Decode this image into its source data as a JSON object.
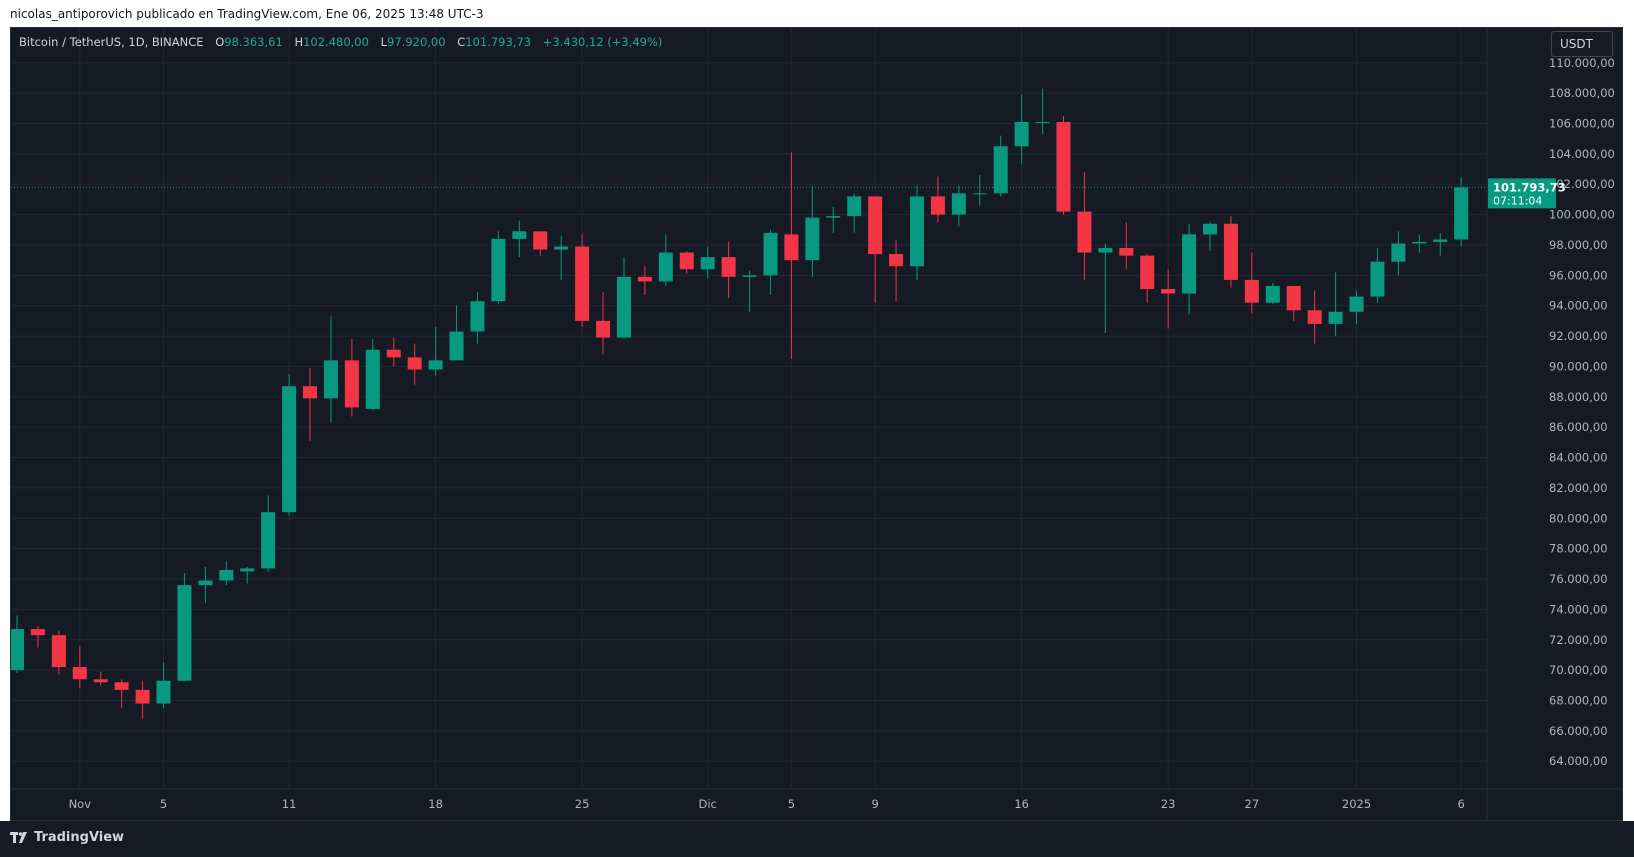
{
  "header": {
    "byline": "nicolas_antiporovich publicado en TradingView.com, Ene 06, 2025 13:48 UTC-3"
  },
  "legend": {
    "symbol": "Bitcoin / TetherUS, 1D, BINANCE",
    "open_label": "O",
    "open": "98.363,61",
    "high_label": "H",
    "high": "102.480,00",
    "low_label": "L",
    "low": "97.920,00",
    "close_label": "C",
    "close": "101.793,73",
    "change": "+3.430,12 (+3,49%)"
  },
  "currency_button": "USDT",
  "price_tag": {
    "price": "101.793,73",
    "countdown": "07:11:04"
  },
  "footer": {
    "brand": "TradingView"
  },
  "colors": {
    "background": "#161a25",
    "up": "#089981",
    "down": "#f23645",
    "grid": "#232733",
    "text": "#b2b5be"
  },
  "chart_data": {
    "type": "candlestick",
    "title": "Bitcoin / TetherUS, 1D, BINANCE",
    "ylim": [
      62500,
      111500
    ],
    "y_ticks": [
      64000,
      66000,
      68000,
      70000,
      72000,
      74000,
      76000,
      78000,
      80000,
      82000,
      84000,
      86000,
      88000,
      90000,
      92000,
      94000,
      96000,
      98000,
      100000,
      102000,
      104000,
      106000,
      108000,
      110000
    ],
    "y_tick_labels": [
      "64.000,00",
      "66.000,00",
      "68.000,00",
      "70.000,00",
      "72.000,00",
      "74.000,00",
      "76.000,00",
      "78.000,00",
      "80.000,00",
      "82.000,00",
      "84.000,00",
      "86.000,00",
      "88.000,00",
      "90.000,00",
      "92.000,00",
      "94.000,00",
      "96.000,00",
      "98.000,00",
      "100.000,00",
      "102.000,00",
      "104.000,00",
      "106.000,00",
      "108.000,00",
      "110.000,00"
    ],
    "x_labels": [
      {
        "text": "Nov",
        "index": 3
      },
      {
        "text": "5",
        "index": 7
      },
      {
        "text": "11",
        "index": 13
      },
      {
        "text": "18",
        "index": 20
      },
      {
        "text": "25",
        "index": 27
      },
      {
        "text": "Dic",
        "index": 33
      },
      {
        "text": "5",
        "index": 37
      },
      {
        "text": "9",
        "index": 41
      },
      {
        "text": "16",
        "index": 48
      },
      {
        "text": "23",
        "index": 55
      },
      {
        "text": "27",
        "index": 59
      },
      {
        "text": "2025",
        "index": 64
      },
      {
        "text": "6",
        "index": 69
      }
    ],
    "candles": [
      {
        "date": "2024-10-29",
        "o": 70000,
        "h": 73600,
        "l": 69800,
        "c": 72700
      },
      {
        "date": "2024-10-30",
        "o": 72700,
        "h": 72900,
        "l": 71500,
        "c": 72300
      },
      {
        "date": "2024-10-31",
        "o": 72300,
        "h": 72600,
        "l": 69700,
        "c": 70200
      },
      {
        "date": "2024-11-01",
        "o": 70200,
        "h": 71600,
        "l": 68800,
        "c": 69400
      },
      {
        "date": "2024-11-02",
        "o": 69400,
        "h": 69900,
        "l": 69000,
        "c": 69200
      },
      {
        "date": "2024-11-03",
        "o": 69200,
        "h": 69400,
        "l": 67500,
        "c": 68700
      },
      {
        "date": "2024-11-04",
        "o": 68700,
        "h": 69300,
        "l": 66800,
        "c": 67800
      },
      {
        "date": "2024-11-05",
        "o": 67800,
        "h": 70500,
        "l": 67500,
        "c": 69300
      },
      {
        "date": "2024-11-06",
        "o": 69300,
        "h": 76400,
        "l": 69300,
        "c": 75600
      },
      {
        "date": "2024-11-07",
        "o": 75600,
        "h": 76800,
        "l": 74400,
        "c": 75900
      },
      {
        "date": "2024-11-08",
        "o": 75900,
        "h": 77200,
        "l": 75600,
        "c": 76600
      },
      {
        "date": "2024-11-09",
        "o": 76500,
        "h": 76800,
        "l": 75700,
        "c": 76700
      },
      {
        "date": "2024-11-10",
        "o": 76700,
        "h": 81500,
        "l": 76500,
        "c": 80400
      },
      {
        "date": "2024-11-11",
        "o": 80400,
        "h": 89500,
        "l": 80200,
        "c": 88700
      },
      {
        "date": "2024-11-12",
        "o": 88700,
        "h": 89900,
        "l": 85100,
        "c": 87900
      },
      {
        "date": "2024-11-13",
        "o": 87900,
        "h": 93300,
        "l": 86300,
        "c": 90400
      },
      {
        "date": "2024-11-14",
        "o": 90400,
        "h": 91800,
        "l": 86700,
        "c": 87300
      },
      {
        "date": "2024-11-15",
        "o": 87200,
        "h": 91800,
        "l": 87100,
        "c": 91100
      },
      {
        "date": "2024-11-16",
        "o": 91100,
        "h": 91900,
        "l": 90000,
        "c": 90600
      },
      {
        "date": "2024-11-17",
        "o": 90600,
        "h": 91500,
        "l": 88800,
        "c": 89800
      },
      {
        "date": "2024-11-18",
        "o": 89800,
        "h": 92600,
        "l": 89400,
        "c": 90400
      },
      {
        "date": "2024-11-19",
        "o": 90400,
        "h": 94000,
        "l": 90400,
        "c": 92300
      },
      {
        "date": "2024-11-20",
        "o": 92300,
        "h": 94900,
        "l": 91500,
        "c": 94300
      },
      {
        "date": "2024-11-21",
        "o": 94300,
        "h": 98900,
        "l": 94100,
        "c": 98400
      },
      {
        "date": "2024-11-22",
        "o": 98400,
        "h": 99600,
        "l": 97200,
        "c": 98900
      },
      {
        "date": "2024-11-23",
        "o": 98900,
        "h": 98900,
        "l": 97300,
        "c": 97700
      },
      {
        "date": "2024-11-24",
        "o": 97700,
        "h": 98600,
        "l": 95700,
        "c": 97900
      },
      {
        "date": "2024-11-25",
        "o": 97900,
        "h": 98700,
        "l": 92600,
        "c": 93000
      },
      {
        "date": "2024-11-26",
        "o": 93000,
        "h": 94900,
        "l": 90800,
        "c": 91900
      },
      {
        "date": "2024-11-27",
        "o": 91900,
        "h": 97200,
        "l": 91800,
        "c": 95900
      },
      {
        "date": "2024-11-28",
        "o": 95900,
        "h": 96600,
        "l": 94700,
        "c": 95600
      },
      {
        "date": "2024-11-29",
        "o": 95600,
        "h": 98700,
        "l": 95300,
        "c": 97500
      },
      {
        "date": "2024-11-30",
        "o": 97500,
        "h": 97600,
        "l": 96100,
        "c": 96400
      },
      {
        "date": "2024-12-01",
        "o": 96400,
        "h": 97900,
        "l": 95800,
        "c": 97200
      },
      {
        "date": "2024-12-02",
        "o": 97200,
        "h": 98200,
        "l": 94500,
        "c": 95900
      },
      {
        "date": "2024-12-03",
        "o": 95900,
        "h": 96300,
        "l": 93600,
        "c": 96000
      },
      {
        "date": "2024-12-04",
        "o": 96000,
        "h": 99000,
        "l": 94700,
        "c": 98800
      },
      {
        "date": "2024-12-05",
        "o": 98700,
        "h": 104100,
        "l": 90500,
        "c": 97000
      },
      {
        "date": "2024-12-06",
        "o": 97000,
        "h": 101900,
        "l": 95900,
        "c": 99800
      },
      {
        "date": "2024-12-07",
        "o": 99800,
        "h": 100500,
        "l": 98800,
        "c": 99900
      },
      {
        "date": "2024-12-08",
        "o": 99900,
        "h": 101400,
        "l": 98800,
        "c": 101200
      },
      {
        "date": "2024-12-09",
        "o": 101200,
        "h": 101200,
        "l": 94200,
        "c": 97400
      },
      {
        "date": "2024-12-10",
        "o": 97400,
        "h": 98300,
        "l": 94300,
        "c": 96600
      },
      {
        "date": "2024-12-11",
        "o": 96600,
        "h": 101900,
        "l": 95700,
        "c": 101200
      },
      {
        "date": "2024-12-12",
        "o": 101200,
        "h": 102500,
        "l": 99500,
        "c": 100000
      },
      {
        "date": "2024-12-13",
        "o": 100000,
        "h": 101900,
        "l": 99200,
        "c": 101400
      },
      {
        "date": "2024-12-14",
        "o": 101400,
        "h": 102600,
        "l": 100600,
        "c": 101400
      },
      {
        "date": "2024-12-15",
        "o": 101400,
        "h": 105200,
        "l": 101200,
        "c": 104500
      },
      {
        "date": "2024-12-16",
        "o": 104500,
        "h": 107900,
        "l": 103300,
        "c": 106100
      },
      {
        "date": "2024-12-17",
        "o": 106100,
        "h": 108300,
        "l": 105300,
        "c": 106100
      },
      {
        "date": "2024-12-18",
        "o": 106100,
        "h": 106500,
        "l": 100000,
        "c": 100200
      },
      {
        "date": "2024-12-19",
        "o": 100200,
        "h": 102800,
        "l": 95700,
        "c": 97500
      },
      {
        "date": "2024-12-20",
        "o": 97500,
        "h": 98100,
        "l": 92200,
        "c": 97800
      },
      {
        "date": "2024-12-21",
        "o": 97800,
        "h": 99500,
        "l": 96400,
        "c": 97300
      },
      {
        "date": "2024-12-22",
        "o": 97300,
        "h": 97400,
        "l": 94200,
        "c": 95100
      },
      {
        "date": "2024-12-23",
        "o": 95100,
        "h": 96400,
        "l": 92500,
        "c": 94800
      },
      {
        "date": "2024-12-24",
        "o": 94800,
        "h": 99400,
        "l": 93400,
        "c": 98700
      },
      {
        "date": "2024-12-25",
        "o": 98700,
        "h": 99500,
        "l": 97600,
        "c": 99400
      },
      {
        "date": "2024-12-26",
        "o": 99400,
        "h": 99900,
        "l": 95200,
        "c": 95700
      },
      {
        "date": "2024-12-27",
        "o": 95700,
        "h": 97500,
        "l": 93500,
        "c": 94200
      },
      {
        "date": "2024-12-28",
        "o": 94200,
        "h": 95500,
        "l": 94100,
        "c": 95300
      },
      {
        "date": "2024-12-29",
        "o": 95300,
        "h": 95300,
        "l": 93000,
        "c": 93700
      },
      {
        "date": "2024-12-30",
        "o": 93700,
        "h": 95000,
        "l": 91500,
        "c": 92800
      },
      {
        "date": "2024-12-31",
        "o": 92800,
        "h": 96200,
        "l": 92000,
        "c": 93600
      },
      {
        "date": "2025-01-01",
        "o": 93600,
        "h": 95000,
        "l": 92800,
        "c": 94600
      },
      {
        "date": "2025-01-02",
        "o": 94600,
        "h": 97800,
        "l": 94200,
        "c": 96900
      },
      {
        "date": "2025-01-03",
        "o": 96900,
        "h": 98900,
        "l": 96000,
        "c": 98100
      },
      {
        "date": "2025-01-04",
        "o": 98100,
        "h": 98700,
        "l": 97500,
        "c": 98200
      },
      {
        "date": "2025-01-05",
        "o": 98200,
        "h": 98800,
        "l": 97300,
        "c": 98363.61
      },
      {
        "date": "2025-01-06",
        "o": 98363.61,
        "h": 102480,
        "l": 97920,
        "c": 101793.73
      }
    ],
    "last_price": 101793.73,
    "grid": true,
    "legend_position": "top-left"
  }
}
